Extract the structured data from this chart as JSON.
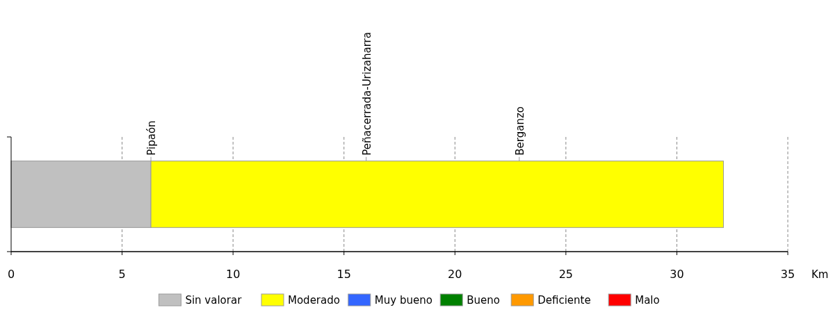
{
  "chart_data": {
    "type": "bar",
    "orientation": "horizontal",
    "stacked": true,
    "xlabel": "Km",
    "categories": [
      null
    ],
    "series": [
      {
        "name": "Sin valorar",
        "color": "#c0c0c0",
        "values": [
          6.3
        ]
      },
      {
        "name": "Moderado",
        "color": "#ffff00",
        "values": [
          25.8
        ]
      },
      {
        "name": "Muy bueno",
        "color": "#3366ff",
        "values": [
          null
        ]
      },
      {
        "name": "Bueno",
        "color": "#008000",
        "values": [
          null
        ]
      },
      {
        "name": "Deficiente",
        "color": "#ff9900",
        "values": [
          null
        ]
      },
      {
        "name": "Malo",
        "color": "#ff0000",
        "values": [
          null
        ]
      }
    ],
    "xlim": [
      0,
      35
    ],
    "xticks": [
      0,
      5,
      10,
      15,
      20,
      25,
      30,
      35
    ],
    "grid": "x",
    "legend": "bottom",
    "ref_lines": [
      {
        "axis": "x",
        "value": 6.3,
        "label": "Pipaón",
        "color": "#999999"
      },
      {
        "axis": "x",
        "value": 16.0,
        "label": "Peñacerrada-Urizaharra",
        "color": "#999999"
      },
      {
        "axis": "x",
        "value": 22.9,
        "label": "Berganzo",
        "color": "#999999"
      }
    ]
  }
}
